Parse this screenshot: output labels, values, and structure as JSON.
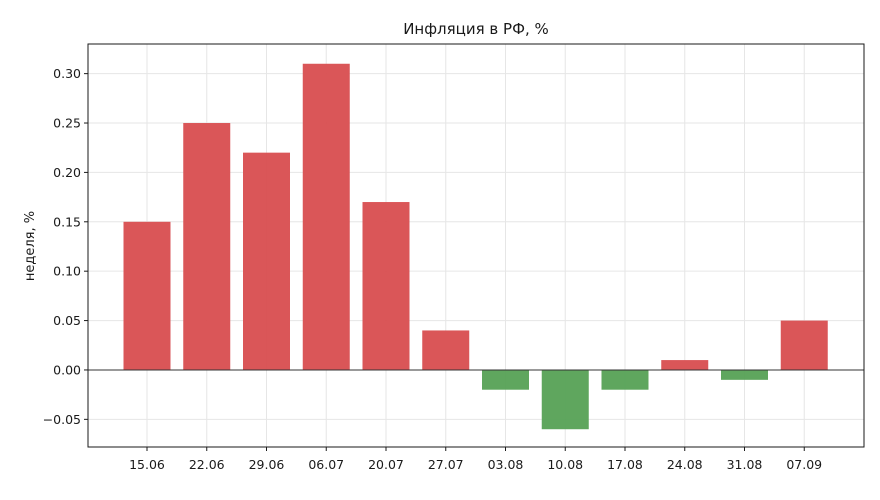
{
  "chart_data": {
    "type": "bar",
    "title": "Инфляция в РФ, %",
    "xlabel": "",
    "ylabel": "неделя, %",
    "categories": [
      "15.06",
      "22.06",
      "29.06",
      "06.07",
      "20.07",
      "27.07",
      "03.08",
      "10.08",
      "17.08",
      "24.08",
      "31.08",
      "07.09"
    ],
    "values": [
      0.15,
      0.25,
      0.22,
      0.31,
      0.17,
      0.04,
      -0.02,
      -0.06,
      -0.02,
      0.01,
      -0.01,
      0.05
    ],
    "ylim": [
      -0.078,
      0.33
    ],
    "yticks": [
      "0.30",
      "0.25",
      "0.20",
      "0.15",
      "0.10",
      "0.05",
      "0.00",
      "−0.05"
    ],
    "ytick_values": [
      0.3,
      0.25,
      0.2,
      0.15,
      0.1,
      0.05,
      0.0,
      -0.05
    ],
    "grid": true,
    "colors": {
      "positive": "#d94f51",
      "negative": "#58a257"
    }
  }
}
